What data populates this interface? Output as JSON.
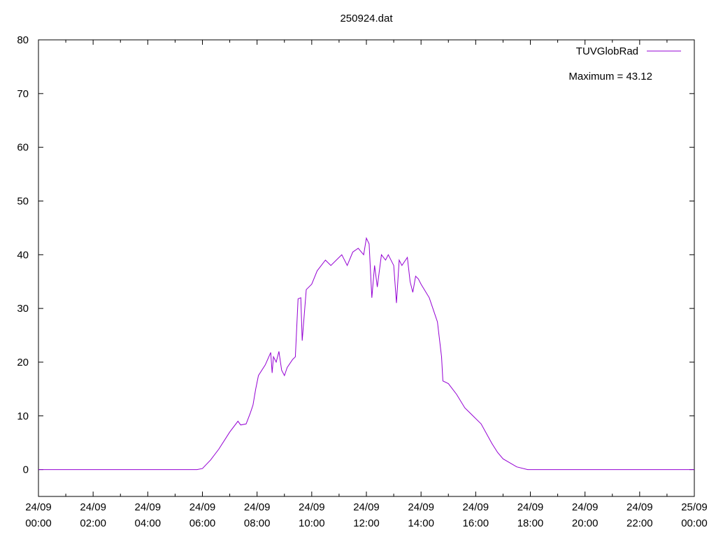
{
  "chart_data": {
    "type": "line",
    "title": "250924.dat",
    "xlabel": "",
    "ylabel": "",
    "ylim": [
      -5,
      80
    ],
    "yticks": [
      0,
      10,
      20,
      30,
      40,
      50,
      60,
      70,
      80
    ],
    "xlim_hours": [
      0,
      24
    ],
    "xticks": [
      {
        "hour": 0,
        "date": "24/09",
        "time": "00:00"
      },
      {
        "hour": 2,
        "date": "24/09",
        "time": "02:00"
      },
      {
        "hour": 4,
        "date": "24/09",
        "time": "04:00"
      },
      {
        "hour": 6,
        "date": "24/09",
        "time": "06:00"
      },
      {
        "hour": 8,
        "date": "24/09",
        "time": "08:00"
      },
      {
        "hour": 10,
        "date": "24/09",
        "time": "10:00"
      },
      {
        "hour": 12,
        "date": "24/09",
        "time": "12:00"
      },
      {
        "hour": 14,
        "date": "24/09",
        "time": "14:00"
      },
      {
        "hour": 16,
        "date": "24/09",
        "time": "16:00"
      },
      {
        "hour": 18,
        "date": "24/09",
        "time": "18:00"
      },
      {
        "hour": 20,
        "date": "24/09",
        "time": "20:00"
      },
      {
        "hour": 22,
        "date": "24/09",
        "time": "22:00"
      },
      {
        "hour": 24,
        "date": "25/09",
        "time": "00:00"
      }
    ],
    "grid": false,
    "legend_position": "top-right",
    "annotation": "Maximum = 43.12",
    "series": [
      {
        "name": "TUVGlobRad",
        "color": "#9400d3",
        "x_hours": [
          0,
          5.8,
          6.0,
          6.3,
          6.6,
          7.0,
          7.3,
          7.4,
          7.6,
          7.75,
          7.85,
          7.95,
          8.05,
          8.3,
          8.5,
          8.55,
          8.6,
          8.7,
          8.8,
          8.9,
          9.0,
          9.1,
          9.3,
          9.4,
          9.5,
          9.6,
          9.65,
          9.8,
          10.0,
          10.2,
          10.5,
          10.7,
          11.0,
          11.1,
          11.3,
          11.5,
          11.7,
          11.9,
          12.0,
          12.1,
          12.2,
          12.3,
          12.4,
          12.55,
          12.7,
          12.8,
          13.0,
          13.1,
          13.2,
          13.3,
          13.5,
          13.6,
          13.7,
          13.8,
          13.9,
          14.0,
          14.3,
          14.5,
          14.6,
          14.75,
          14.8,
          15.0,
          15.3,
          15.6,
          15.8,
          16.2,
          16.6,
          16.8,
          17.0,
          17.5,
          17.9,
          18.0,
          20.0,
          24.0
        ],
        "y_values": [
          0,
          0,
          0.2,
          1.8,
          3.8,
          7.0,
          9.0,
          8.3,
          8.5,
          10.5,
          12.0,
          15.0,
          17.5,
          19.5,
          21.8,
          18.0,
          21.0,
          20.0,
          22.0,
          18.5,
          17.5,
          19.0,
          20.5,
          21.0,
          31.8,
          32.0,
          24.0,
          33.5,
          34.5,
          37.0,
          39.0,
          38.0,
          39.5,
          40.0,
          38.0,
          40.5,
          41.2,
          40.0,
          43.1,
          42.0,
          32.0,
          38.0,
          34.0,
          40.0,
          39.0,
          40.0,
          38.0,
          31.0,
          39.0,
          38.0,
          39.5,
          35.0,
          33.0,
          36.0,
          35.5,
          34.5,
          32.0,
          29.0,
          27.5,
          21.0,
          16.5,
          16.0,
          14.0,
          11.5,
          10.5,
          8.5,
          4.8,
          3.2,
          2.0,
          0.5,
          0.0,
          0.0,
          0.0,
          0.0
        ]
      }
    ]
  }
}
